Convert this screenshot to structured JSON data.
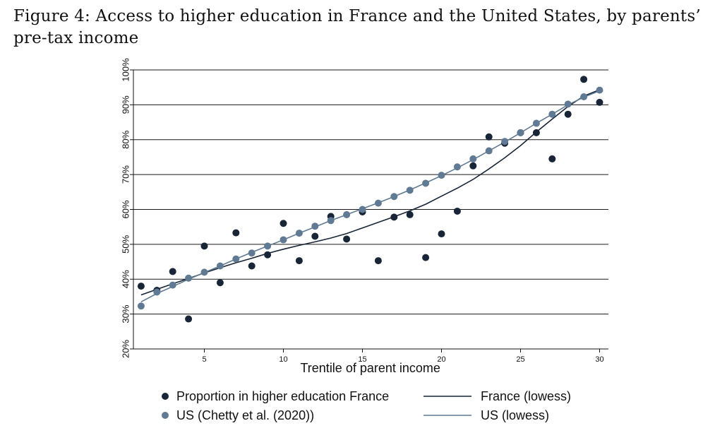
{
  "figure": {
    "caption": "Figure 4: Access to higher education in France and the United States, by parents’ pre-tax income"
  },
  "chart_data": {
    "type": "scatter",
    "xlabel": "Trentile of parent income",
    "ylabel": "",
    "xlim": [
      0.5,
      30.5
    ],
    "ylim": [
      20,
      100
    ],
    "x_ticks": [
      5,
      10,
      15,
      20,
      25,
      30
    ],
    "y_ticks": [
      "20%",
      "30%",
      "40%",
      "50%",
      "60%",
      "70%",
      "80%",
      "90%",
      "100%"
    ],
    "y_tick_values": [
      20,
      30,
      40,
      50,
      60,
      70,
      80,
      90,
      100
    ],
    "grid": "horizontal",
    "legend_position": "bottom",
    "x": [
      1,
      2,
      3,
      4,
      5,
      6,
      7,
      8,
      9,
      10,
      11,
      12,
      13,
      14,
      15,
      16,
      17,
      18,
      19,
      20,
      21,
      22,
      23,
      24,
      25,
      26,
      27,
      28,
      29,
      30
    ],
    "series": [
      {
        "name": "Proportion in higher education France",
        "kind": "points",
        "color": "#172536",
        "values": [
          38,
          36.8,
          42.2,
          28.6,
          49.5,
          39,
          53.3,
          43.8,
          47,
          56,
          45.3,
          52.3,
          58,
          51.5,
          59.3,
          45.3,
          57.8,
          58.5,
          46.2,
          53,
          59.5,
          72.5,
          80.8,
          79,
          82,
          82,
          74.5,
          87.3,
          97.3,
          90.7
        ]
      },
      {
        "name": "US (Chetty et al. (2020))",
        "kind": "points",
        "color": "#5f7a92",
        "values": [
          32.3,
          36.3,
          38.3,
          40.3,
          42,
          43.8,
          45.8,
          47.5,
          49.5,
          51.3,
          53.2,
          55.2,
          56.8,
          58.5,
          60,
          61.8,
          63.7,
          65.5,
          67.5,
          69.8,
          72.2,
          74.5,
          76.8,
          79.5,
          82,
          84.7,
          87.3,
          90.2,
          92.3,
          94.2
        ]
      },
      {
        "name": "France (lowess)",
        "kind": "line",
        "color": "#172536",
        "values": [
          35.5,
          37.1,
          38.7,
          40.2,
          41.8,
          43.3,
          44.7,
          46,
          47.4,
          48.6,
          49.7,
          50.7,
          51.8,
          53.1,
          54.7,
          56.3,
          57.9,
          59.6,
          61.5,
          63.8,
          66.1,
          68.6,
          71.6,
          74.8,
          78.3,
          82.2,
          85.9,
          89.5,
          92.5,
          94.3
        ]
      },
      {
        "name": "US (lowess)",
        "kind": "line",
        "color": "#5f7a92",
        "values": [
          33.5,
          35.9,
          37.9,
          40,
          41.9,
          43.8,
          45.8,
          47.7,
          49.5,
          51.3,
          53.2,
          55,
          56.8,
          58.5,
          60.2,
          61.9,
          63.7,
          65.6,
          67.6,
          69.7,
          71.9,
          74.3,
          76.8,
          79.3,
          82,
          84.7,
          87.3,
          90,
          92.2,
          94
        ]
      }
    ]
  }
}
